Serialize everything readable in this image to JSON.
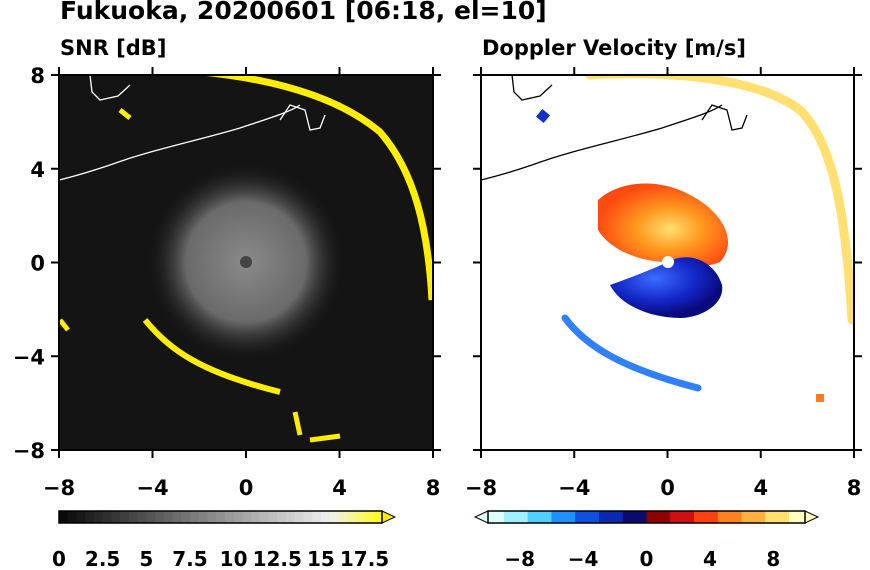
{
  "figure": {
    "title": "Fukuoka, 20200601 [06:18, el=10]"
  },
  "chart_data": [
    {
      "type": "heatmap",
      "title": "SNR [dB]",
      "x_ticks": [
        "−8",
        "−4",
        "0",
        "4",
        "8"
      ],
      "y_ticks": [
        "8",
        "4",
        "0",
        "−4",
        "−8"
      ],
      "xlim": [
        -8,
        8
      ],
      "ylim": [
        -8,
        8
      ],
      "colormap": "grayscale to yellow",
      "colorbar": {
        "range": [
          0,
          18.5
        ],
        "tick_labels": [
          "0",
          "2.5",
          "5",
          "7.5",
          "10",
          "12.5",
          "15",
          "17.5"
        ],
        "extend": "max"
      },
      "colors": {
        "background": "#111111",
        "high": "#ffff00",
        "echo": "#7a7a7a"
      }
    },
    {
      "type": "heatmap",
      "title": "Doppler Velocity [m/s]",
      "x_ticks": [
        "−8",
        "−4",
        "0",
        "4",
        "8"
      ],
      "y_ticks": [
        "8",
        "4",
        "0",
        "−4",
        "−8"
      ],
      "xlim": [
        -8,
        8
      ],
      "ylim": [
        -8,
        8
      ],
      "colormap": "cyan-blue-navy | red-orange-yellow",
      "colorbar": {
        "range": [
          -10,
          10
        ],
        "tick_labels": [
          "−8",
          "−4",
          "0",
          "4",
          "8"
        ],
        "extend": "both"
      },
      "colors": {
        "negative": "#1030d0",
        "positive": "#ff5010",
        "far_positive": "#ffe050"
      }
    }
  ]
}
